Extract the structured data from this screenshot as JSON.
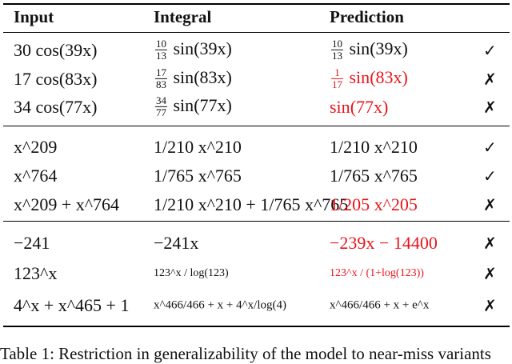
{
  "headers": {
    "input": "Input",
    "integral": "Integral",
    "prediction": "Prediction"
  },
  "groups": [
    {
      "rows": [
        {
          "input": {
            "coef": "30",
            "fn": "cos",
            "arg": "39x"
          },
          "integral": {
            "num": "10",
            "den": "13",
            "fn": "sin",
            "arg": "39x"
          },
          "prediction": {
            "num": "10",
            "den": "13",
            "fn": "sin",
            "arg": "39x",
            "error": false
          },
          "mark": "✓"
        },
        {
          "input": {
            "coef": "17",
            "fn": "cos",
            "arg": "83x"
          },
          "integral": {
            "num": "17",
            "den": "83",
            "fn": "sin",
            "arg": "83x"
          },
          "prediction": {
            "num": "1",
            "den": "17",
            "fn": "sin",
            "arg": "83x",
            "error": true
          },
          "mark": "✗"
        },
        {
          "input": {
            "coef": "34",
            "fn": "cos",
            "arg": "77x"
          },
          "integral": {
            "num": "34",
            "den": "77",
            "fn": "sin",
            "arg": "77x"
          },
          "prediction": {
            "num": "",
            "den": "",
            "fn": "sin",
            "arg": "77x",
            "error": true
          },
          "mark": "✗"
        }
      ]
    },
    {
      "rows": [
        {
          "input": "x^209",
          "integral": "1/210 x^210",
          "prediction": "1/210 x^210",
          "mark": "✓"
        },
        {
          "input": "x^764",
          "integral": "1/765 x^765",
          "prediction": "1/765 x^765",
          "mark": "✓"
        },
        {
          "input": "x^209 + x^764",
          "integral": "1/210 x^210 + 1/765 x^765",
          "prediction": "1/205 x^205",
          "mark": "✗"
        }
      ]
    },
    {
      "rows": [
        {
          "input": "−241",
          "integral": "−241x",
          "prediction": "−239x − 14400",
          "mark": "✗"
        },
        {
          "input": "123^x",
          "integral": "123^x / log(123)",
          "prediction": "123^x / (1+log(123))",
          "mark": "✗"
        },
        {
          "input": "4^x + x^465 + 1",
          "integral": "x^466/466 + x + 4^x/log(4)",
          "prediction": "x^466/466 + x + e^x",
          "mark": "✗"
        }
      ]
    }
  ],
  "caption": "Table 1: Restriction in generalizability of the model to near-miss variants"
}
